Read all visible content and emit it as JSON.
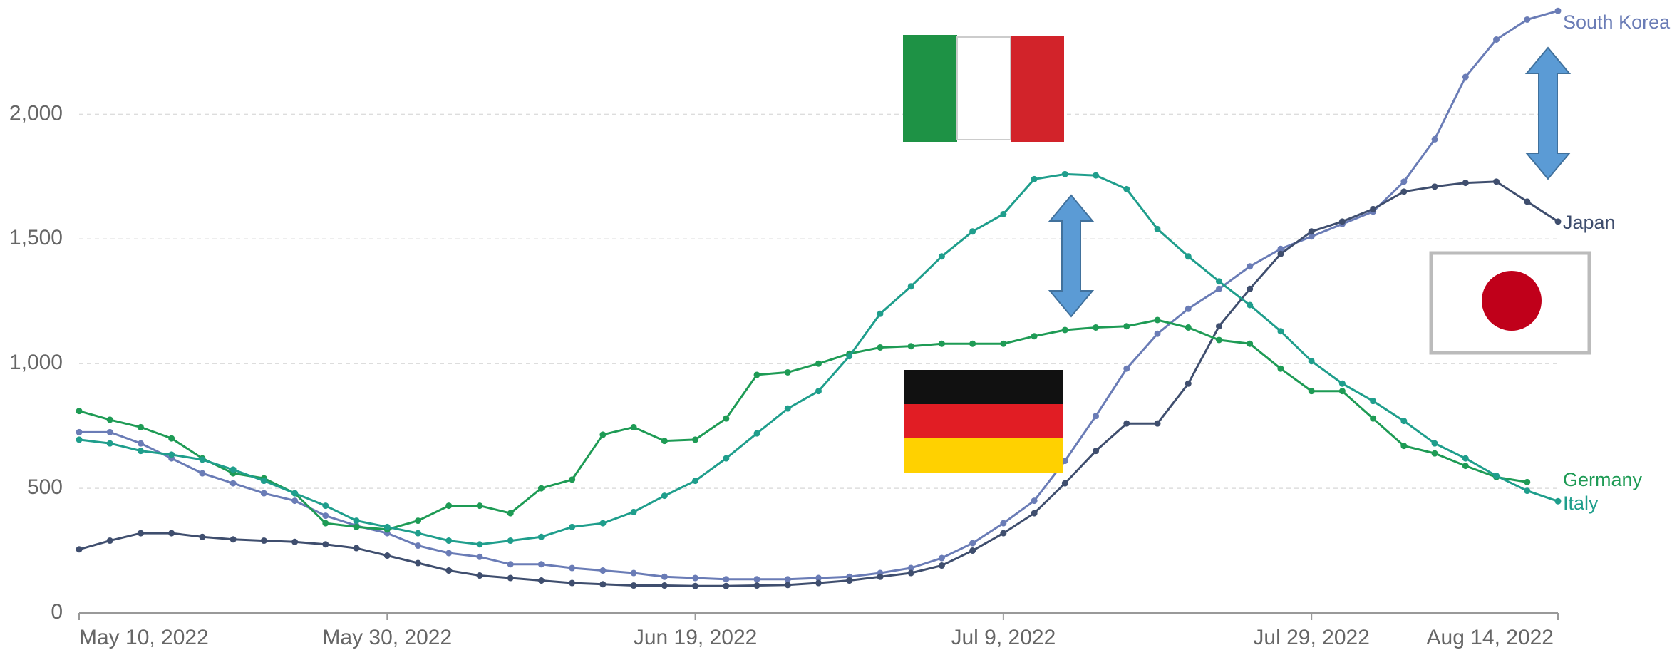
{
  "chart_data": {
    "type": "line",
    "x": [
      "2022-05-10",
      "2022-05-12",
      "2022-05-14",
      "2022-05-16",
      "2022-05-18",
      "2022-05-20",
      "2022-05-22",
      "2022-05-24",
      "2022-05-26",
      "2022-05-28",
      "2022-05-30",
      "2022-06-01",
      "2022-06-03",
      "2022-06-05",
      "2022-06-07",
      "2022-06-09",
      "2022-06-11",
      "2022-06-13",
      "2022-06-15",
      "2022-06-17",
      "2022-06-19",
      "2022-06-21",
      "2022-06-23",
      "2022-06-25",
      "2022-06-27",
      "2022-06-29",
      "2022-07-01",
      "2022-07-03",
      "2022-07-05",
      "2022-07-07",
      "2022-07-09",
      "2022-07-11",
      "2022-07-13",
      "2022-07-15",
      "2022-07-17",
      "2022-07-19",
      "2022-07-21",
      "2022-07-23",
      "2022-07-25",
      "2022-07-27",
      "2022-07-29",
      "2022-07-31",
      "2022-08-02",
      "2022-08-04",
      "2022-08-06",
      "2022-08-08",
      "2022-08-10",
      "2022-08-12",
      "2022-08-14"
    ],
    "series": [
      {
        "name": "South Korea",
        "color": "#6a7cb6",
        "values": [
          725,
          725,
          680,
          620,
          560,
          520,
          480,
          450,
          390,
          350,
          320,
          270,
          240,
          225,
          195,
          195,
          180,
          170,
          160,
          145,
          140,
          135,
          135,
          135,
          140,
          145,
          160,
          180,
          220,
          280,
          360,
          450,
          610,
          790,
          980,
          1120,
          1220,
          1300,
          1390,
          1460,
          1510,
          1560,
          1610,
          1730,
          1900,
          2150,
          2300,
          2380,
          2415
        ]
      },
      {
        "name": "Japan",
        "color": "#3f4e6e",
        "values": [
          255,
          290,
          320,
          320,
          305,
          295,
          290,
          285,
          275,
          260,
          230,
          200,
          170,
          150,
          140,
          130,
          120,
          115,
          110,
          110,
          108,
          108,
          110,
          112,
          120,
          130,
          145,
          160,
          190,
          250,
          320,
          400,
          520,
          650,
          760,
          760,
          920,
          1150,
          1300,
          1440,
          1530,
          1570,
          1620,
          1690,
          1710,
          1725,
          1730,
          1650,
          1570
        ]
      },
      {
        "name": "Germany",
        "color": "#1e9b55",
        "values": [
          810,
          775,
          745,
          700,
          620,
          560,
          540,
          480,
          360,
          345,
          335,
          370,
          430,
          430,
          400,
          500,
          535,
          715,
          745,
          690,
          695,
          780,
          955,
          965,
          1000,
          1040,
          1065,
          1070,
          1080,
          1080,
          1080,
          1110,
          1135,
          1145,
          1150,
          1175,
          1145,
          1095,
          1080,
          980,
          890,
          890,
          780,
          670,
          640,
          590,
          545,
          525,
          null
        ]
      },
      {
        "name": "Italy",
        "color": "#1f9e8c",
        "values": [
          695,
          680,
          650,
          635,
          615,
          575,
          530,
          480,
          430,
          370,
          345,
          320,
          290,
          275,
          290,
          305,
          345,
          360,
          405,
          470,
          530,
          620,
          720,
          820,
          890,
          1030,
          1200,
          1310,
          1430,
          1530,
          1600,
          1740,
          1760,
          1755,
          1700,
          1540,
          1430,
          1330,
          1235,
          1130,
          1010,
          920,
          850,
          770,
          680,
          620,
          550,
          490,
          448
        ]
      }
    ],
    "xlim": [
      "2022-05-10",
      "2022-08-14"
    ],
    "xticks": [
      {
        "value": "2022-05-10",
        "label": "May 10, 2022"
      },
      {
        "value": "2022-05-30",
        "label": "May 30, 2022"
      },
      {
        "value": "2022-06-19",
        "label": "Jun 19, 2022"
      },
      {
        "value": "2022-07-09",
        "label": "Jul 9, 2022"
      },
      {
        "value": "2022-07-29",
        "label": "Jul 29, 2022"
      },
      {
        "value": "2022-08-14",
        "label": "Aug 14, 2022"
      }
    ],
    "ylim": [
      0,
      2450
    ],
    "yticks": [
      0,
      500,
      {
        "value": 1000,
        "label": "1,000"
      },
      {
        "value": 1500,
        "label": "1,500"
      },
      {
        "value": 2000,
        "label": "2,000"
      }
    ],
    "grid": true
  }
}
